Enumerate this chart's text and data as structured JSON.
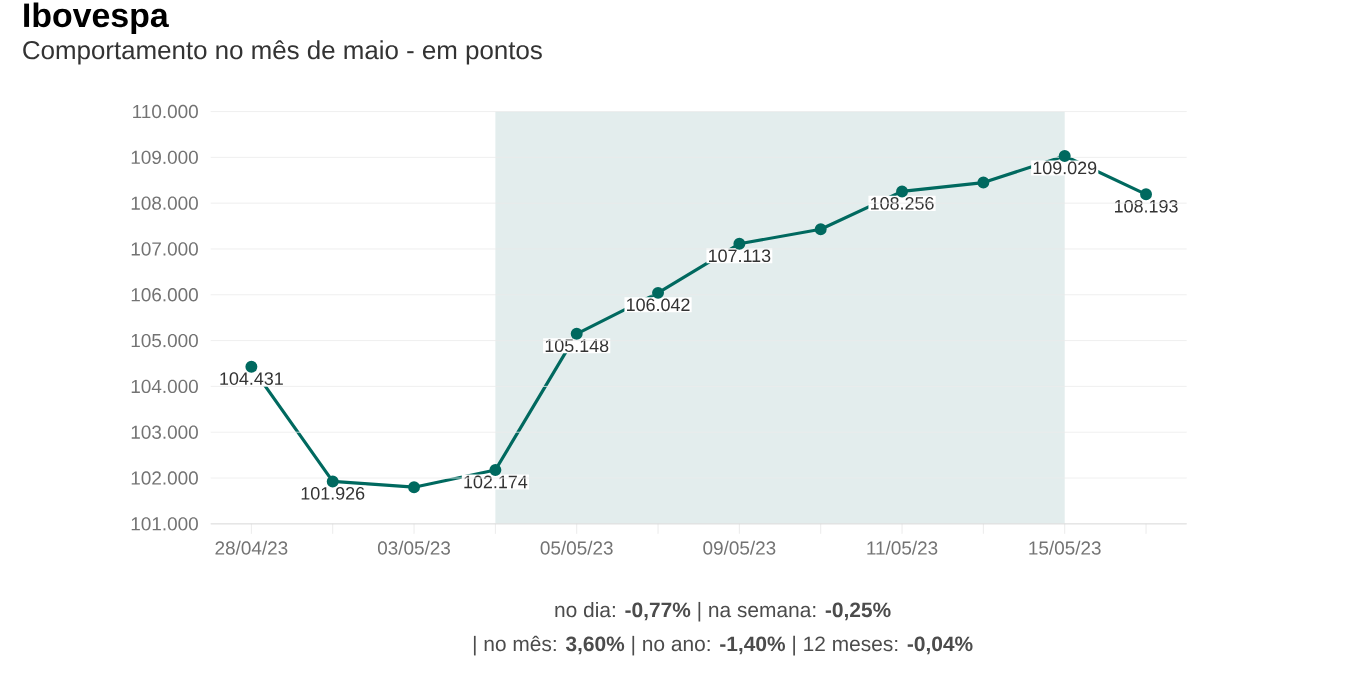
{
  "chart_data": {
    "type": "line",
    "title": "Ibovespa",
    "subtitle": "Comportamento no mês de maio - em pontos",
    "categories": [
      "28/04/23",
      null,
      "03/05/23",
      null,
      "05/05/23",
      null,
      "09/05/23",
      null,
      "11/05/23",
      null,
      "15/05/23",
      null
    ],
    "series": [
      {
        "color": "#00695f",
        "values": [
          104431,
          101926,
          101800,
          102174,
          105148,
          106042,
          107113,
          107430,
          108256,
          108450,
          109029,
          108193
        ],
        "value_labels": [
          "104.431",
          "101.926",
          null,
          "102.174",
          "105.148",
          "106.042",
          "107.113",
          null,
          "108.256",
          null,
          "109.029",
          "108.193"
        ]
      }
    ],
    "ylim": [
      101000,
      110000
    ],
    "yticks": [
      {
        "value": 101000,
        "label": "101.000"
      },
      {
        "value": 102000,
        "label": "102.000"
      },
      {
        "value": 103000,
        "label": "103.000"
      },
      {
        "value": 104000,
        "label": "104.000"
      },
      {
        "value": 105000,
        "label": "105.000"
      },
      {
        "value": 106000,
        "label": "106.000"
      },
      {
        "value": 107000,
        "label": "107.000"
      },
      {
        "value": 108000,
        "label": "108.000"
      },
      {
        "value": 109000,
        "label": "109.000"
      },
      {
        "value": 110000,
        "label": "110.000"
      }
    ],
    "grid": "y",
    "marker": "circle",
    "line_style": "solid",
    "annotations": [
      "no dia: **-0,77%** | na semana: **-0,25%**",
      "| no mês: **3,60%** | no ano: **-1,40%** | 12 meses: **-0,04%**"
    ]
  }
}
